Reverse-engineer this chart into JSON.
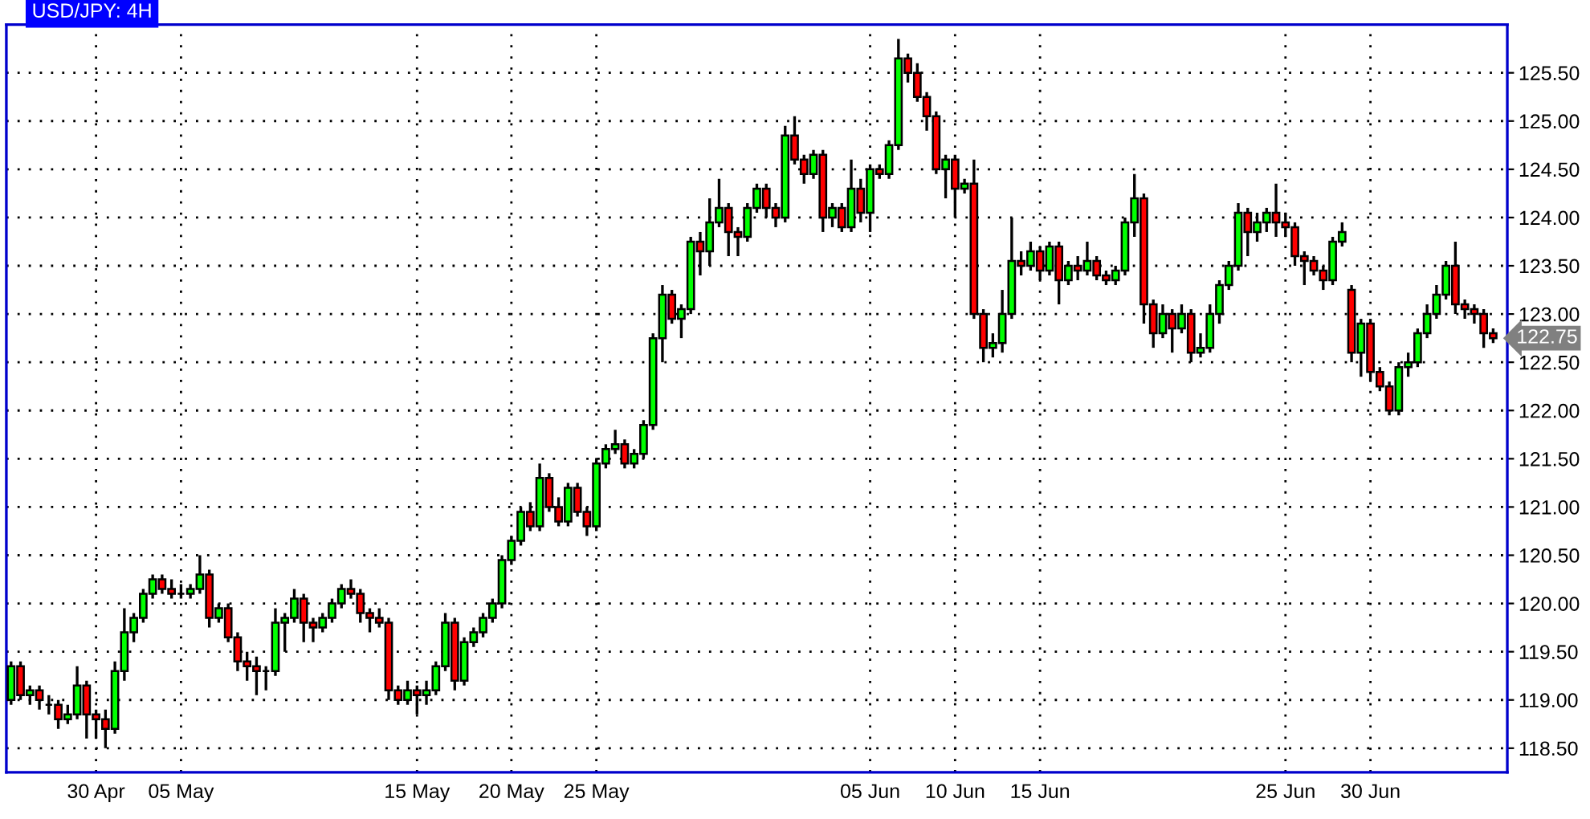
{
  "chart_data": {
    "type": "candlestick",
    "title": "USD/JPY: 4H",
    "categories": [
      null,
      null,
      null,
      null,
      null,
      null,
      null,
      null,
      null,
      "30 Apr",
      null,
      null,
      null,
      null,
      null,
      null,
      null,
      null,
      "05 May",
      null,
      null,
      null,
      null,
      null,
      null,
      null,
      null,
      null,
      null,
      null,
      null,
      null,
      null,
      null,
      null,
      null,
      null,
      null,
      null,
      null,
      null,
      null,
      null,
      "15 May",
      null,
      null,
      null,
      null,
      null,
      null,
      null,
      null,
      null,
      "20 May",
      null,
      null,
      null,
      null,
      null,
      null,
      null,
      null,
      "25 May",
      null,
      null,
      null,
      null,
      null,
      null,
      null,
      null,
      null,
      null,
      null,
      null,
      null,
      null,
      null,
      null,
      null,
      null,
      null,
      null,
      null,
      null,
      null,
      null,
      null,
      null,
      null,
      null,
      "05 Jun",
      null,
      null,
      null,
      null,
      null,
      null,
      null,
      null,
      "10 Jun",
      null,
      null,
      null,
      null,
      null,
      null,
      null,
      null,
      "15 Jun",
      null,
      null,
      null,
      null,
      null,
      null,
      null,
      null,
      null,
      null,
      null,
      null,
      null,
      null,
      null,
      null,
      null,
      null,
      null,
      null,
      null,
      null,
      null,
      null,
      null,
      "25 Jun",
      null,
      null,
      null,
      null,
      null,
      null,
      null,
      null,
      "30 Jun",
      null,
      null,
      null,
      null,
      null,
      null,
      null,
      null,
      null,
      null,
      null,
      null,
      null
    ],
    "ohlc": [
      [
        119.0,
        119.4,
        118.95,
        119.35
      ],
      [
        119.35,
        119.4,
        119.0,
        119.05
      ],
      [
        119.05,
        119.15,
        118.95,
        119.1
      ],
      [
        119.1,
        119.15,
        118.9,
        119.0
      ],
      [
        118.95,
        119.05,
        118.85,
        118.95
      ],
      [
        118.95,
        119.0,
        118.7,
        118.8
      ],
      [
        118.8,
        118.95,
        118.75,
        118.85
      ],
      [
        118.85,
        119.35,
        118.8,
        119.15
      ],
      [
        119.15,
        119.2,
        118.6,
        118.85
      ],
      [
        118.85,
        118.9,
        118.6,
        118.8
      ],
      [
        118.8,
        118.9,
        118.5,
        118.7
      ],
      [
        118.7,
        119.4,
        118.65,
        119.3
      ],
      [
        119.3,
        119.95,
        119.2,
        119.7
      ],
      [
        119.7,
        119.9,
        119.6,
        119.85
      ],
      [
        119.85,
        120.15,
        119.8,
        120.1
      ],
      [
        120.1,
        120.3,
        120.05,
        120.25
      ],
      [
        120.25,
        120.3,
        120.1,
        120.15
      ],
      [
        120.15,
        120.25,
        120.05,
        120.1
      ],
      [
        120.1,
        120.2,
        120.05,
        120.1
      ],
      [
        120.1,
        120.2,
        120.05,
        120.15
      ],
      [
        120.15,
        120.5,
        120.1,
        120.3
      ],
      [
        120.3,
        120.35,
        119.75,
        119.85
      ],
      [
        119.85,
        120.0,
        119.8,
        119.95
      ],
      [
        119.95,
        120.0,
        119.6,
        119.65
      ],
      [
        119.65,
        119.7,
        119.3,
        119.4
      ],
      [
        119.4,
        119.5,
        119.2,
        119.35
      ],
      [
        119.35,
        119.45,
        119.05,
        119.3
      ],
      [
        119.3,
        119.35,
        119.1,
        119.3
      ],
      [
        119.3,
        119.95,
        119.25,
        119.8
      ],
      [
        119.8,
        119.9,
        119.5,
        119.85
      ],
      [
        119.85,
        120.15,
        119.8,
        120.05
      ],
      [
        120.05,
        120.1,
        119.6,
        119.8
      ],
      [
        119.8,
        119.85,
        119.6,
        119.75
      ],
      [
        119.75,
        119.9,
        119.7,
        119.85
      ],
      [
        119.85,
        120.05,
        119.8,
        120.0
      ],
      [
        120.0,
        120.2,
        119.95,
        120.15
      ],
      [
        120.15,
        120.25,
        120.05,
        120.1
      ],
      [
        120.1,
        120.15,
        119.8,
        119.9
      ],
      [
        119.9,
        119.95,
        119.7,
        119.85
      ],
      [
        119.85,
        119.95,
        119.75,
        119.8
      ],
      [
        119.8,
        119.85,
        119.0,
        119.1
      ],
      [
        119.1,
        119.15,
        118.95,
        119.0
      ],
      [
        119.0,
        119.2,
        118.95,
        119.1
      ],
      [
        119.1,
        119.15,
        118.85,
        119.05
      ],
      [
        119.05,
        119.2,
        118.95,
        119.1
      ],
      [
        119.1,
        119.4,
        119.05,
        119.35
      ],
      [
        119.35,
        119.9,
        119.3,
        119.8
      ],
      [
        119.8,
        119.85,
        119.1,
        119.2
      ],
      [
        119.2,
        119.65,
        119.15,
        119.6
      ],
      [
        119.6,
        119.75,
        119.55,
        119.7
      ],
      [
        119.7,
        119.9,
        119.65,
        119.85
      ],
      [
        119.85,
        120.05,
        119.8,
        120.0
      ],
      [
        120.0,
        120.5,
        119.95,
        120.45
      ],
      [
        120.45,
        120.7,
        120.4,
        120.65
      ],
      [
        120.65,
        121.0,
        120.6,
        120.95
      ],
      [
        120.95,
        121.05,
        120.75,
        120.8
      ],
      [
        120.8,
        121.45,
        120.75,
        121.3
      ],
      [
        121.3,
        121.35,
        120.95,
        121.0
      ],
      [
        121.0,
        121.1,
        120.8,
        120.85
      ],
      [
        120.85,
        121.25,
        120.8,
        121.2
      ],
      [
        121.2,
        121.25,
        120.9,
        120.95
      ],
      [
        120.95,
        121.0,
        120.7,
        120.8
      ],
      [
        120.8,
        121.5,
        120.75,
        121.45
      ],
      [
        121.45,
        121.65,
        121.4,
        121.6
      ],
      [
        121.6,
        121.8,
        121.55,
        121.65
      ],
      [
        121.65,
        121.7,
        121.4,
        121.45
      ],
      [
        121.45,
        121.6,
        121.4,
        121.55
      ],
      [
        121.55,
        121.9,
        121.5,
        121.85
      ],
      [
        121.85,
        122.8,
        121.8,
        122.75
      ],
      [
        122.75,
        123.3,
        122.5,
        123.2
      ],
      [
        123.2,
        123.25,
        122.9,
        122.95
      ],
      [
        122.95,
        123.1,
        122.75,
        123.05
      ],
      [
        123.05,
        123.8,
        123.0,
        123.75
      ],
      [
        123.75,
        123.85,
        123.4,
        123.65
      ],
      [
        123.65,
        124.2,
        123.5,
        123.95
      ],
      [
        123.95,
        124.4,
        123.9,
        124.1
      ],
      [
        124.1,
        124.15,
        123.6,
        123.85
      ],
      [
        123.85,
        123.9,
        123.6,
        123.8
      ],
      [
        123.8,
        124.15,
        123.75,
        124.1
      ],
      [
        124.1,
        124.35,
        124.05,
        124.3
      ],
      [
        124.3,
        124.35,
        124.0,
        124.1
      ],
      [
        124.1,
        124.15,
        123.9,
        124.0
      ],
      [
        124.0,
        124.95,
        123.95,
        124.85
      ],
      [
        124.85,
        125.05,
        124.55,
        124.6
      ],
      [
        124.6,
        124.65,
        124.35,
        124.45
      ],
      [
        124.45,
        124.7,
        124.4,
        124.65
      ],
      [
        124.65,
        124.7,
        123.85,
        124.0
      ],
      [
        124.0,
        124.15,
        123.9,
        124.1
      ],
      [
        124.1,
        124.15,
        123.85,
        123.9
      ],
      [
        123.9,
        124.6,
        123.85,
        124.3
      ],
      [
        124.3,
        124.4,
        123.95,
        124.05
      ],
      [
        124.05,
        124.55,
        123.85,
        124.5
      ],
      [
        124.5,
        124.55,
        124.4,
        124.45
      ],
      [
        124.45,
        124.8,
        124.4,
        124.75
      ],
      [
        124.75,
        125.85,
        124.7,
        125.65
      ],
      [
        125.65,
        125.7,
        125.4,
        125.5
      ],
      [
        125.5,
        125.6,
        125.2,
        125.25
      ],
      [
        125.25,
        125.3,
        124.9,
        125.05
      ],
      [
        125.05,
        125.1,
        124.45,
        124.5
      ],
      [
        124.5,
        124.65,
        124.2,
        124.6
      ],
      [
        124.6,
        124.65,
        124.0,
        124.3
      ],
      [
        124.3,
        124.4,
        124.25,
        124.35
      ],
      [
        124.35,
        124.6,
        122.95,
        123.0
      ],
      [
        123.0,
        123.05,
        122.5,
        122.65
      ],
      [
        122.65,
        122.8,
        122.55,
        122.7
      ],
      [
        122.7,
        123.25,
        122.6,
        123.0
      ],
      [
        123.0,
        124.0,
        122.95,
        123.55
      ],
      [
        123.55,
        123.65,
        123.4,
        123.5
      ],
      [
        123.5,
        123.75,
        123.45,
        123.65
      ],
      [
        123.65,
        123.7,
        123.35,
        123.45
      ],
      [
        123.45,
        123.75,
        123.4,
        123.7
      ],
      [
        123.7,
        123.75,
        123.1,
        123.35
      ],
      [
        123.35,
        123.55,
        123.3,
        123.5
      ],
      [
        123.5,
        123.6,
        123.35,
        123.45
      ],
      [
        123.45,
        123.75,
        123.4,
        123.55
      ],
      [
        123.55,
        123.6,
        123.35,
        123.4
      ],
      [
        123.4,
        123.45,
        123.3,
        123.35
      ],
      [
        123.35,
        123.5,
        123.3,
        123.45
      ],
      [
        123.45,
        124.0,
        123.4,
        123.95
      ],
      [
        123.95,
        124.45,
        123.8,
        124.2
      ],
      [
        124.2,
        124.25,
        122.9,
        123.1
      ],
      [
        123.1,
        123.15,
        122.65,
        122.8
      ],
      [
        122.8,
        123.1,
        122.75,
        123.0
      ],
      [
        123.0,
        123.05,
        122.6,
        122.85
      ],
      [
        122.85,
        123.1,
        122.8,
        123.0
      ],
      [
        123.0,
        123.05,
        122.5,
        122.6
      ],
      [
        122.6,
        122.8,
        122.55,
        122.65
      ],
      [
        122.65,
        123.1,
        122.6,
        123.0
      ],
      [
        123.0,
        123.35,
        122.9,
        123.3
      ],
      [
        123.3,
        123.55,
        123.25,
        123.5
      ],
      [
        123.5,
        124.15,
        123.45,
        124.05
      ],
      [
        124.05,
        124.1,
        123.6,
        123.85
      ],
      [
        123.85,
        124.05,
        123.75,
        123.95
      ],
      [
        123.95,
        124.1,
        123.85,
        124.05
      ],
      [
        124.05,
        124.35,
        123.8,
        123.95
      ],
      [
        123.95,
        124.05,
        123.8,
        123.9
      ],
      [
        123.9,
        123.95,
        123.5,
        123.6
      ],
      [
        123.6,
        123.65,
        123.3,
        123.55
      ],
      [
        123.55,
        123.6,
        123.4,
        123.45
      ],
      [
        123.45,
        123.5,
        123.25,
        123.35
      ],
      [
        123.35,
        123.8,
        123.3,
        123.75
      ],
      [
        123.75,
        123.95,
        123.7,
        123.85
      ],
      [
        123.25,
        123.3,
        122.5,
        122.6
      ],
      [
        122.6,
        122.95,
        122.35,
        122.9
      ],
      [
        122.9,
        122.95,
        122.3,
        122.4
      ],
      [
        122.4,
        122.45,
        122.2,
        122.25
      ],
      [
        122.25,
        122.3,
        121.95,
        122.0
      ],
      [
        122.0,
        122.5,
        121.95,
        122.45
      ],
      [
        122.45,
        122.6,
        122.35,
        122.5
      ],
      [
        122.5,
        122.85,
        122.45,
        122.8
      ],
      [
        122.8,
        123.1,
        122.75,
        123.0
      ],
      [
        123.0,
        123.3,
        122.95,
        123.2
      ],
      [
        123.2,
        123.55,
        123.15,
        123.5
      ],
      [
        123.5,
        123.75,
        123.0,
        123.1
      ],
      [
        123.1,
        123.15,
        122.95,
        123.05
      ],
      [
        123.05,
        123.1,
        122.9,
        123.0
      ],
      [
        123.0,
        123.05,
        122.65,
        122.8
      ],
      [
        122.8,
        122.85,
        122.7,
        122.75
      ]
    ],
    "ylim": [
      118.25,
      126.0
    ],
    "yticks": [
      {
        "value": 118.5,
        "label": "118.50"
      },
      {
        "value": 119.0,
        "label": "119.00"
      },
      {
        "value": 119.5,
        "label": "119.50"
      },
      {
        "value": 120.0,
        "label": "120.00"
      },
      {
        "value": 120.5,
        "label": "120.50"
      },
      {
        "value": 121.0,
        "label": "121.00"
      },
      {
        "value": 121.5,
        "label": "121.50"
      },
      {
        "value": 122.0,
        "label": "122.00"
      },
      {
        "value": 122.5,
        "label": "122.50"
      },
      {
        "value": 123.0,
        "label": "123.00"
      },
      {
        "value": 123.5,
        "label": "123.50"
      },
      {
        "value": 124.0,
        "label": "124.00"
      },
      {
        "value": 124.5,
        "label": "124.50"
      },
      {
        "value": 125.0,
        "label": "125.00"
      },
      {
        "value": 125.5,
        "label": "125.50"
      }
    ],
    "annotations": [
      "122.75"
    ],
    "grid": true
  }
}
